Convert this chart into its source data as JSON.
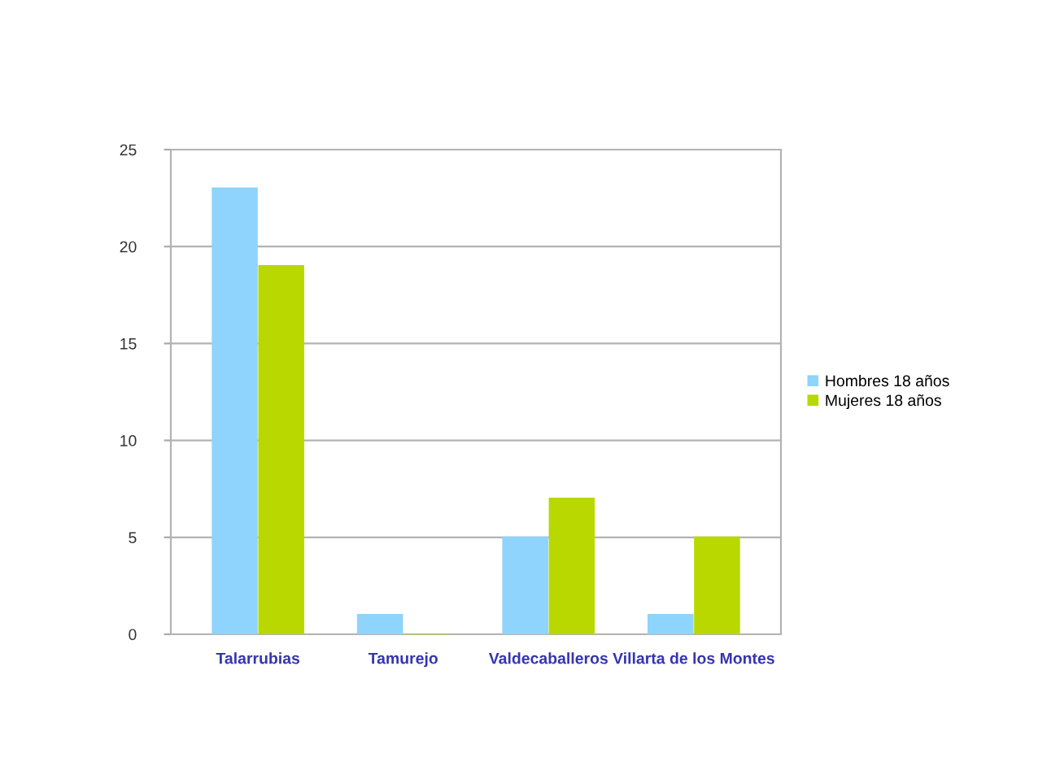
{
  "chart_data": {
    "type": "bar",
    "categories": [
      "Talarrubias",
      "Tamurejo",
      "Valdecaballeros",
      "Villarta de los Montes"
    ],
    "series": [
      {
        "name": "Hombres 18 años",
        "color": "#8ed4fc",
        "values": [
          23,
          1,
          5,
          1
        ]
      },
      {
        "name": "Mujeres 18 años",
        "color": "#b8d800",
        "values": [
          19,
          0,
          7,
          5
        ]
      }
    ],
    "ylim": [
      0,
      25
    ],
    "yticks": [
      0,
      5,
      10,
      15,
      20,
      25
    ],
    "grid": "y",
    "legend": "right"
  }
}
